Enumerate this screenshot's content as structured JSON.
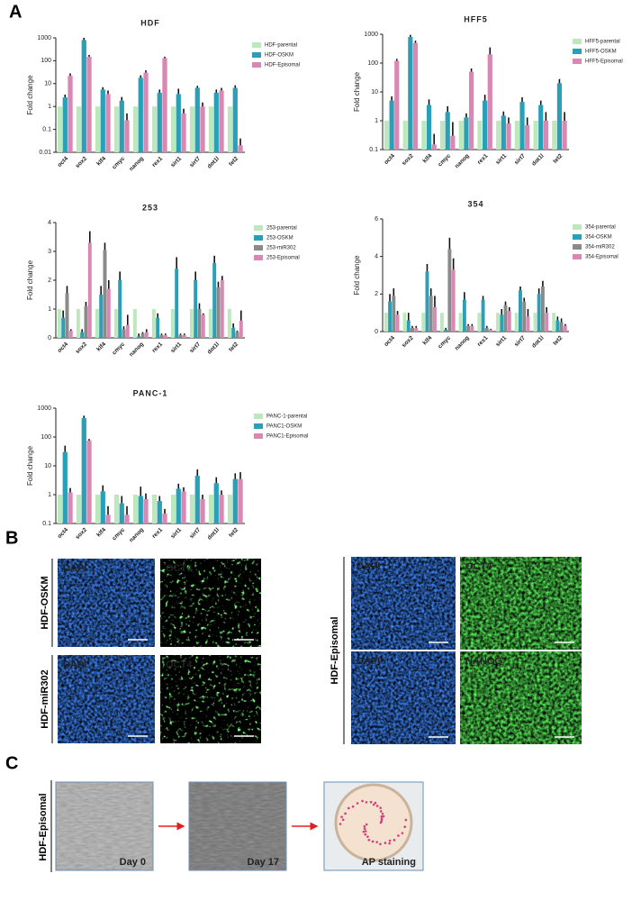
{
  "panel_labels": [
    "A",
    "B",
    "C"
  ],
  "chart_data": [
    {
      "type": "bar",
      "title": "HDF",
      "ylabel": "Fold change",
      "log": true,
      "legend": "right",
      "categories": [
        "oct4",
        "sox2",
        "klf4",
        "cmyc",
        "nanog",
        "rex1",
        "sirt1",
        "sirt7",
        "dot1l",
        "tet2"
      ],
      "ylim": [
        0.01,
        1000
      ],
      "yticks": [
        0.01,
        0.1,
        1,
        10,
        100,
        1000
      ],
      "series": [
        {
          "name": "HDF-parental",
          "color": "#bde8bd",
          "values": [
            1,
            1,
            1,
            1,
            1,
            1,
            1,
            1,
            1,
            1
          ]
        },
        {
          "name": "HDF-OSKM",
          "color": "#2a9fb8",
          "values": [
            2.5,
            800,
            5.5,
            1.8,
            18,
            4,
            3.5,
            6.5,
            4,
            6.5
          ],
          "errors": [
            0.8,
            200,
            1.5,
            0.8,
            5,
            1.5,
            2.5,
            1.5,
            1.5,
            2
          ]
        },
        {
          "name": "HDF-Episomal",
          "color": "#d987b3",
          "values": [
            22,
            150,
            3.5,
            0.25,
            30,
            130,
            0.5,
            1,
            5,
            0.02
          ],
          "errors": [
            6,
            30,
            1.5,
            0.25,
            8,
            20,
            0.3,
            0.5,
            1.5,
            0.02
          ]
        }
      ]
    },
    {
      "type": "bar",
      "title": "HFF5",
      "ylabel": "Fold change",
      "log": true,
      "legend": "right",
      "categories": [
        "oct4",
        "sox2",
        "klf4",
        "cmyc",
        "nanog",
        "rex1",
        "sirt1",
        "sirt7",
        "dot1l",
        "tet2"
      ],
      "ylim": [
        0.1,
        1000
      ],
      "yticks": [
        0.1,
        1,
        10,
        100,
        1000
      ],
      "series": [
        {
          "name": "HFF5-parental",
          "color": "#bde8bd",
          "values": [
            1,
            1,
            1,
            1,
            1,
            1,
            1,
            1,
            1,
            1
          ]
        },
        {
          "name": "HFF5-OSKM",
          "color": "#2a9fb8",
          "values": [
            5,
            800,
            3.5,
            2,
            1.3,
            5,
            1.5,
            4.5,
            3.5,
            20
          ],
          "errors": [
            2,
            150,
            2,
            1.2,
            0.5,
            3,
            0.6,
            2,
            1.5,
            8
          ]
        },
        {
          "name": "HFF5-Episomal",
          "color": "#d987b3",
          "values": [
            120,
            500,
            0.15,
            0.3,
            50,
            200,
            0.8,
            0.7,
            1,
            1
          ],
          "errors": [
            20,
            100,
            0.2,
            0.6,
            15,
            150,
            0.5,
            0.6,
            1,
            1
          ]
        }
      ]
    },
    {
      "type": "bar",
      "title": "253",
      "ylabel": "Fold change",
      "log": false,
      "legend": "right",
      "categories": [
        "oct4",
        "sox2",
        "klf4",
        "cmyc",
        "nanog",
        "rex1",
        "sirt1",
        "sirt7",
        "dot1l",
        "tet2"
      ],
      "ylim": [
        0,
        4
      ],
      "yticks": [
        0,
        1,
        2,
        3,
        4
      ],
      "series": [
        {
          "name": "253-parental",
          "color": "#bde8bd",
          "values": [
            1,
            1,
            1,
            1,
            1,
            1,
            1,
            1,
            1,
            1
          ]
        },
        {
          "name": "253-OSKM",
          "color": "#2a9fb8",
          "values": [
            0.7,
            0.2,
            1.5,
            2.0,
            0.05,
            0.7,
            2.4,
            2.0,
            2.6,
            0.35
          ],
          "errors": [
            0.25,
            0.1,
            0.3,
            0.3,
            0.1,
            0.15,
            0.4,
            0.3,
            0.25,
            0.15
          ]
        },
        {
          "name": "253-miR302",
          "color": "#8a8a8a",
          "values": [
            1.55,
            1.1,
            3.05,
            0.3,
            0.15,
            0.1,
            0.1,
            1.0,
            1.75,
            0.2
          ],
          "errors": [
            0.25,
            0.15,
            0.25,
            0.1,
            0.05,
            0.05,
            0.05,
            0.2,
            0.2,
            0.05
          ]
        },
        {
          "name": "253-Episomal",
          "color": "#d987b3",
          "values": [
            0.25,
            3.3,
            1.7,
            0.45,
            0.2,
            0.1,
            0.1,
            0.8,
            2.0,
            0.6
          ],
          "errors": [
            0.05,
            0.4,
            0.3,
            0.35,
            0.1,
            0.05,
            0.05,
            0.05,
            0.15,
            0.35
          ]
        }
      ]
    },
    {
      "type": "bar",
      "title": "354",
      "ylabel": "Fold change",
      "log": false,
      "legend": "right",
      "categories": [
        "oct4",
        "sox2",
        "klf4",
        "cmyc",
        "nanog",
        "rex1",
        "sirt1",
        "sirt7",
        "dot1l",
        "tet2"
      ],
      "ylim": [
        0,
        6
      ],
      "yticks": [
        0,
        2,
        4,
        6
      ],
      "series": [
        {
          "name": "354-parental",
          "color": "#bde8bd",
          "values": [
            1,
            1,
            1,
            1,
            1,
            1,
            1,
            1,
            1,
            1
          ]
        },
        {
          "name": "354-OSKM",
          "color": "#2a9fb8",
          "values": [
            1.6,
            0.6,
            3.2,
            0.1,
            1.7,
            1.7,
            0.9,
            2.2,
            2.0,
            0.6
          ],
          "errors": [
            0.4,
            0.4,
            0.4,
            0.1,
            0.4,
            0.2,
            0.3,
            0.2,
            0.3,
            0.2
          ]
        },
        {
          "name": "354-miR302",
          "color": "#8a8a8a",
          "values": [
            1.9,
            0.2,
            1.9,
            4.4,
            0.3,
            0.2,
            1.4,
            1.6,
            2.4,
            0.5
          ],
          "errors": [
            0.4,
            0.1,
            0.4,
            0.6,
            0.1,
            0.1,
            0.2,
            0.2,
            0.3,
            0.2
          ]
        },
        {
          "name": "354-Episomal",
          "color": "#d987b3",
          "values": [
            0.9,
            0.2,
            1.3,
            3.3,
            0.3,
            0.1,
            1.1,
            0.8,
            1.0,
            0.3
          ],
          "errors": [
            0.2,
            0.1,
            0.6,
            0.6,
            0.1,
            0.05,
            0.2,
            0.4,
            0.3,
            0.1
          ]
        }
      ]
    },
    {
      "type": "bar",
      "title": "PANC-1",
      "ylabel": "Fold change",
      "log": true,
      "legend": "right",
      "categories": [
        "oct4",
        "sox2",
        "klf4",
        "cmyc",
        "nanog",
        "rex1",
        "sirt1",
        "sirt7",
        "dot1l",
        "tet2"
      ],
      "ylim": [
        0.1,
        1000
      ],
      "yticks": [
        0.1,
        1,
        10,
        100,
        1000
      ],
      "series": [
        {
          "name": "PANC-1-parental",
          "color": "#bde8bd",
          "values": [
            1,
            1,
            1,
            1,
            1,
            1,
            1,
            1,
            1,
            1
          ]
        },
        {
          "name": "PANC1-OSKM",
          "color": "#2a9fb8",
          "values": [
            30,
            450,
            1.3,
            0.5,
            0.9,
            0.6,
            1.6,
            4.5,
            2.5,
            3.5
          ],
          "errors": [
            20,
            100,
            0.8,
            0.4,
            1,
            0.3,
            0.8,
            3,
            1.5,
            2
          ]
        },
        {
          "name": "PANC1-Episomal",
          "color": "#d987b3",
          "values": [
            1.2,
            75,
            0.2,
            0.2,
            0.7,
            0.22,
            1.3,
            0.7,
            1,
            3.5
          ],
          "errors": [
            0.5,
            10,
            0.2,
            0.2,
            0.4,
            0.1,
            0.5,
            0.3,
            0.4,
            2.5
          ]
        }
      ]
    }
  ],
  "panel_b": {
    "groups": [
      {
        "label": "HDF-OSKM",
        "images": [
          "DAPI",
          "OCT4"
        ]
      },
      {
        "label": "HDF-miR302",
        "images": [
          "DAPI",
          "OCT4"
        ]
      },
      {
        "label": "HDF-Episomal",
        "images": [
          "DAPI",
          "OCT4",
          "DAPI",
          "NANOG"
        ]
      }
    ]
  },
  "panel_c": {
    "label": "HDF-Episomal",
    "images": [
      "Day 0",
      "Day 17",
      "AP staining"
    ]
  }
}
